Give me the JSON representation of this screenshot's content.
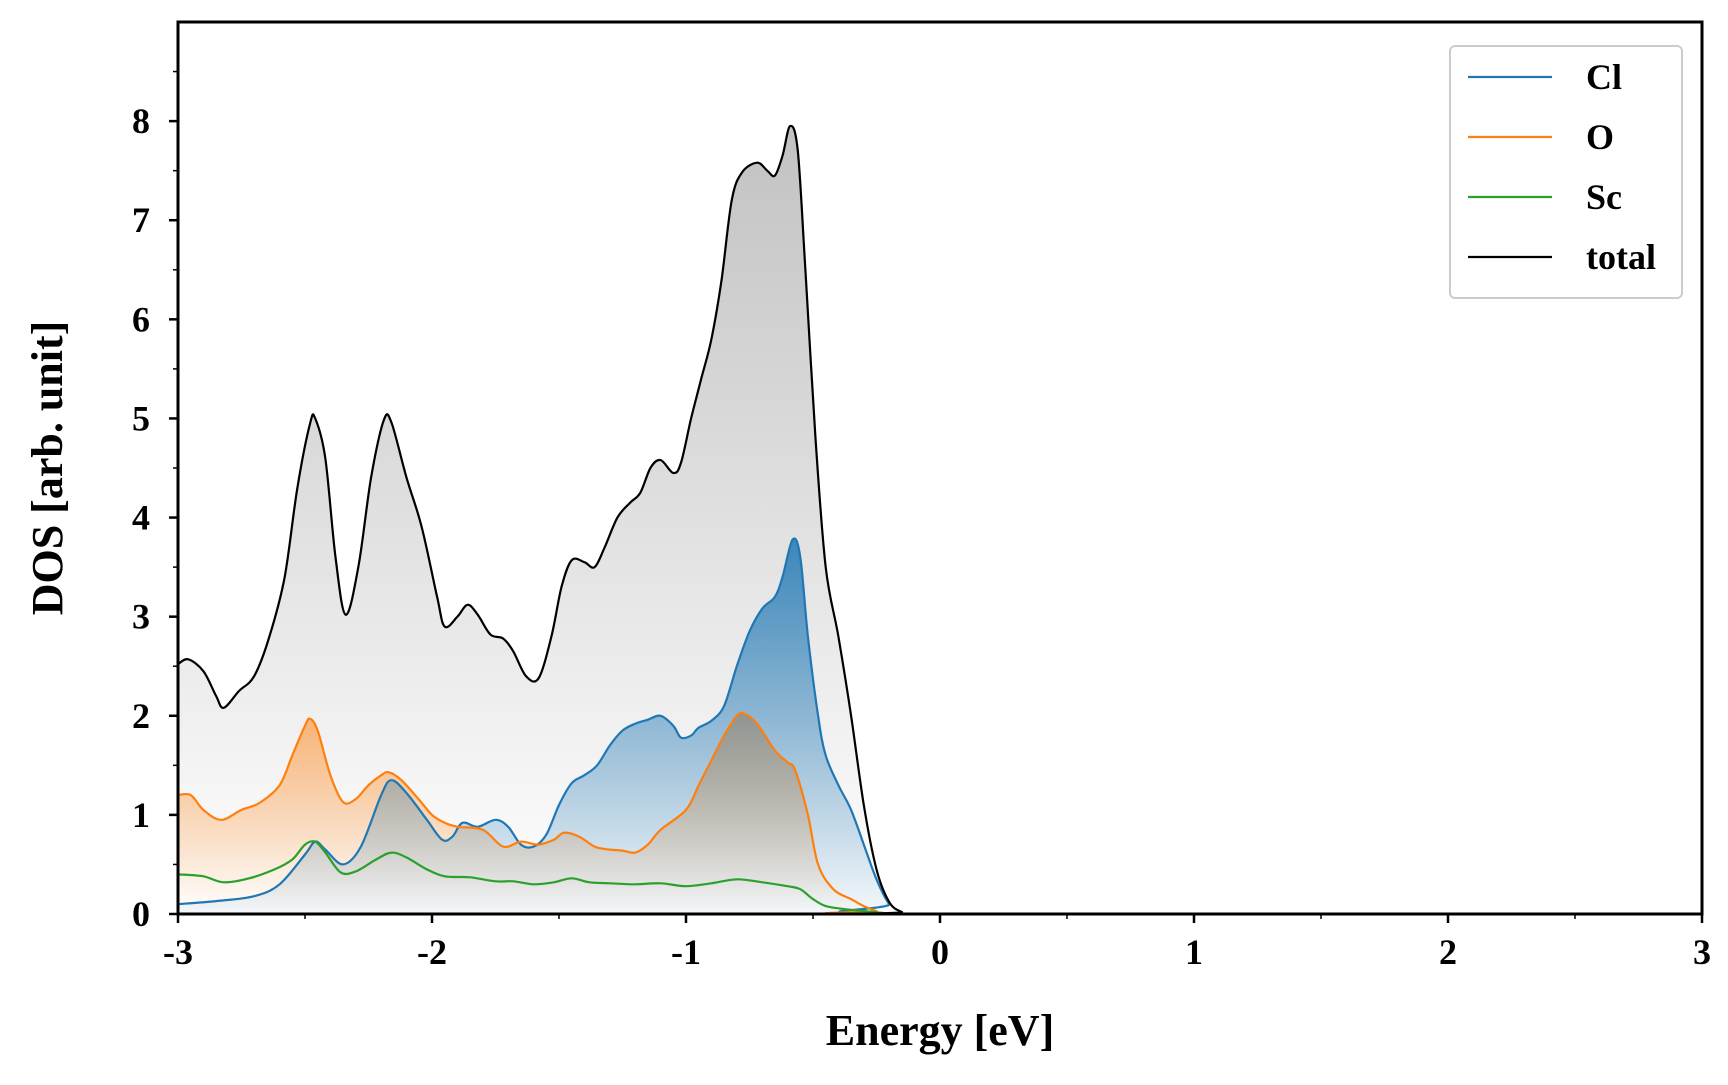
{
  "chart_data": {
    "type": "area",
    "title": "",
    "xlabel": "Energy [eV]",
    "ylabel": "DOS [arb. unit]",
    "xlim": [
      -3,
      3
    ],
    "ylim": [
      0,
      9
    ],
    "xticks": [
      -3,
      -2,
      -1,
      0,
      1,
      2,
      3
    ],
    "xtick_labels": [
      "-3",
      "-2",
      "-1",
      "0",
      "1",
      "2",
      "3"
    ],
    "yticks": [
      0,
      1,
      2,
      3,
      4,
      5,
      6,
      7,
      8
    ],
    "ytick_labels": [
      "0",
      "1",
      "2",
      "3",
      "4",
      "5",
      "6",
      "7",
      "8"
    ],
    "grid": false,
    "legend_position": "top-right",
    "series": [
      {
        "name": "Cl",
        "color": "#1f77b4",
        "filled": true,
        "points": [
          [
            -3.0,
            0.1
          ],
          [
            -2.85,
            0.13
          ],
          [
            -2.7,
            0.18
          ],
          [
            -2.6,
            0.3
          ],
          [
            -2.5,
            0.6
          ],
          [
            -2.46,
            0.73
          ],
          [
            -2.42,
            0.65
          ],
          [
            -2.35,
            0.5
          ],
          [
            -2.28,
            0.68
          ],
          [
            -2.2,
            1.2
          ],
          [
            -2.16,
            1.35
          ],
          [
            -2.1,
            1.22
          ],
          [
            -2.02,
            0.95
          ],
          [
            -1.96,
            0.75
          ],
          [
            -1.92,
            0.78
          ],
          [
            -1.88,
            0.92
          ],
          [
            -1.82,
            0.88
          ],
          [
            -1.75,
            0.95
          ],
          [
            -1.7,
            0.88
          ],
          [
            -1.65,
            0.7
          ],
          [
            -1.6,
            0.68
          ],
          [
            -1.55,
            0.8
          ],
          [
            -1.5,
            1.1
          ],
          [
            -1.45,
            1.32
          ],
          [
            -1.4,
            1.4
          ],
          [
            -1.35,
            1.5
          ],
          [
            -1.3,
            1.7
          ],
          [
            -1.25,
            1.85
          ],
          [
            -1.2,
            1.92
          ],
          [
            -1.15,
            1.96
          ],
          [
            -1.1,
            2.0
          ],
          [
            -1.05,
            1.9
          ],
          [
            -1.02,
            1.78
          ],
          [
            -0.98,
            1.8
          ],
          [
            -0.95,
            1.88
          ],
          [
            -0.9,
            1.95
          ],
          [
            -0.85,
            2.1
          ],
          [
            -0.8,
            2.5
          ],
          [
            -0.75,
            2.85
          ],
          [
            -0.7,
            3.08
          ],
          [
            -0.65,
            3.2
          ],
          [
            -0.62,
            3.4
          ],
          [
            -0.58,
            3.78
          ],
          [
            -0.55,
            3.6
          ],
          [
            -0.52,
            2.8
          ],
          [
            -0.48,
            2.0
          ],
          [
            -0.45,
            1.6
          ],
          [
            -0.4,
            1.3
          ],
          [
            -0.35,
            1.05
          ],
          [
            -0.3,
            0.7
          ],
          [
            -0.25,
            0.35
          ],
          [
            -0.2,
            0.1
          ],
          [
            -0.15,
            0.0
          ],
          [
            3.0,
            0.0
          ]
        ]
      },
      {
        "name": "O",
        "color": "#ff7f0e",
        "filled": true,
        "points": [
          [
            -3.0,
            1.2
          ],
          [
            -2.95,
            1.2
          ],
          [
            -2.9,
            1.05
          ],
          [
            -2.83,
            0.95
          ],
          [
            -2.75,
            1.05
          ],
          [
            -2.68,
            1.12
          ],
          [
            -2.6,
            1.3
          ],
          [
            -2.55,
            1.6
          ],
          [
            -2.5,
            1.9
          ],
          [
            -2.48,
            1.97
          ],
          [
            -2.45,
            1.85
          ],
          [
            -2.4,
            1.4
          ],
          [
            -2.35,
            1.13
          ],
          [
            -2.3,
            1.16
          ],
          [
            -2.25,
            1.3
          ],
          [
            -2.2,
            1.4
          ],
          [
            -2.17,
            1.43
          ],
          [
            -2.12,
            1.35
          ],
          [
            -2.05,
            1.15
          ],
          [
            -2.0,
            1.0
          ],
          [
            -1.95,
            0.92
          ],
          [
            -1.9,
            0.88
          ],
          [
            -1.8,
            0.85
          ],
          [
            -1.72,
            0.68
          ],
          [
            -1.65,
            0.73
          ],
          [
            -1.58,
            0.7
          ],
          [
            -1.52,
            0.75
          ],
          [
            -1.48,
            0.82
          ],
          [
            -1.42,
            0.78
          ],
          [
            -1.36,
            0.68
          ],
          [
            -1.3,
            0.65
          ],
          [
            -1.25,
            0.64
          ],
          [
            -1.2,
            0.62
          ],
          [
            -1.15,
            0.7
          ],
          [
            -1.1,
            0.85
          ],
          [
            -1.0,
            1.05
          ],
          [
            -0.95,
            1.3
          ],
          [
            -0.9,
            1.55
          ],
          [
            -0.85,
            1.8
          ],
          [
            -0.8,
            2.0
          ],
          [
            -0.77,
            2.02
          ],
          [
            -0.72,
            1.92
          ],
          [
            -0.65,
            1.65
          ],
          [
            -0.6,
            1.53
          ],
          [
            -0.57,
            1.45
          ],
          [
            -0.52,
            1.0
          ],
          [
            -0.48,
            0.5
          ],
          [
            -0.42,
            0.25
          ],
          [
            -0.35,
            0.15
          ],
          [
            -0.3,
            0.08
          ],
          [
            -0.25,
            0.03
          ],
          [
            -0.2,
            0.0
          ],
          [
            3.0,
            0.0
          ]
        ]
      },
      {
        "name": "Sc",
        "color": "#2ca02c",
        "filled": false,
        "points": [
          [
            -3.0,
            0.4
          ],
          [
            -2.9,
            0.38
          ],
          [
            -2.82,
            0.32
          ],
          [
            -2.72,
            0.36
          ],
          [
            -2.62,
            0.45
          ],
          [
            -2.55,
            0.55
          ],
          [
            -2.5,
            0.7
          ],
          [
            -2.46,
            0.73
          ],
          [
            -2.42,
            0.62
          ],
          [
            -2.36,
            0.42
          ],
          [
            -2.3,
            0.43
          ],
          [
            -2.22,
            0.55
          ],
          [
            -2.16,
            0.62
          ],
          [
            -2.1,
            0.57
          ],
          [
            -2.02,
            0.45
          ],
          [
            -1.95,
            0.38
          ],
          [
            -1.85,
            0.37
          ],
          [
            -1.75,
            0.33
          ],
          [
            -1.68,
            0.33
          ],
          [
            -1.6,
            0.3
          ],
          [
            -1.52,
            0.32
          ],
          [
            -1.45,
            0.36
          ],
          [
            -1.38,
            0.32
          ],
          [
            -1.3,
            0.31
          ],
          [
            -1.2,
            0.3
          ],
          [
            -1.1,
            0.31
          ],
          [
            -1.0,
            0.28
          ],
          [
            -0.9,
            0.31
          ],
          [
            -0.8,
            0.35
          ],
          [
            -0.7,
            0.32
          ],
          [
            -0.6,
            0.28
          ],
          [
            -0.55,
            0.25
          ],
          [
            -0.5,
            0.15
          ],
          [
            -0.45,
            0.08
          ],
          [
            -0.38,
            0.05
          ],
          [
            -0.3,
            0.03
          ],
          [
            -0.22,
            0.01
          ],
          [
            -0.15,
            0.0
          ],
          [
            3.0,
            0.0
          ]
        ]
      },
      {
        "name": "total",
        "color": "#000000",
        "filled": true,
        "points": [
          [
            -3.0,
            2.52
          ],
          [
            -2.96,
            2.57
          ],
          [
            -2.9,
            2.45
          ],
          [
            -2.85,
            2.2
          ],
          [
            -2.82,
            2.08
          ],
          [
            -2.76,
            2.25
          ],
          [
            -2.7,
            2.4
          ],
          [
            -2.64,
            2.8
          ],
          [
            -2.58,
            3.4
          ],
          [
            -2.53,
            4.3
          ],
          [
            -2.48,
            4.95
          ],
          [
            -2.46,
            5.0
          ],
          [
            -2.42,
            4.6
          ],
          [
            -2.38,
            3.6
          ],
          [
            -2.34,
            3.02
          ],
          [
            -2.29,
            3.5
          ],
          [
            -2.24,
            4.4
          ],
          [
            -2.19,
            4.98
          ],
          [
            -2.16,
            4.96
          ],
          [
            -2.1,
            4.4
          ],
          [
            -2.04,
            3.9
          ],
          [
            -1.98,
            3.2
          ],
          [
            -1.95,
            2.9
          ],
          [
            -1.9,
            3.0
          ],
          [
            -1.86,
            3.12
          ],
          [
            -1.82,
            3.02
          ],
          [
            -1.77,
            2.82
          ],
          [
            -1.72,
            2.78
          ],
          [
            -1.68,
            2.65
          ],
          [
            -1.63,
            2.4
          ],
          [
            -1.58,
            2.38
          ],
          [
            -1.53,
            2.8
          ],
          [
            -1.49,
            3.3
          ],
          [
            -1.45,
            3.57
          ],
          [
            -1.4,
            3.55
          ],
          [
            -1.36,
            3.5
          ],
          [
            -1.32,
            3.7
          ],
          [
            -1.27,
            4.0
          ],
          [
            -1.22,
            4.15
          ],
          [
            -1.18,
            4.25
          ],
          [
            -1.14,
            4.5
          ],
          [
            -1.1,
            4.58
          ],
          [
            -1.05,
            4.45
          ],
          [
            -1.02,
            4.55
          ],
          [
            -0.98,
            5.0
          ],
          [
            -0.94,
            5.4
          ],
          [
            -0.9,
            5.8
          ],
          [
            -0.86,
            6.4
          ],
          [
            -0.82,
            7.2
          ],
          [
            -0.78,
            7.48
          ],
          [
            -0.72,
            7.58
          ],
          [
            -0.68,
            7.5
          ],
          [
            -0.65,
            7.45
          ],
          [
            -0.62,
            7.65
          ],
          [
            -0.59,
            7.95
          ],
          [
            -0.56,
            7.7
          ],
          [
            -0.53,
            6.5
          ],
          [
            -0.49,
            4.8
          ],
          [
            -0.45,
            3.5
          ],
          [
            -0.4,
            2.8
          ],
          [
            -0.35,
            2.0
          ],
          [
            -0.3,
            1.1
          ],
          [
            -0.25,
            0.45
          ],
          [
            -0.2,
            0.12
          ],
          [
            -0.15,
            0.02
          ],
          [
            -0.1,
            0.0
          ],
          [
            3.0,
            0.0
          ]
        ]
      }
    ]
  }
}
